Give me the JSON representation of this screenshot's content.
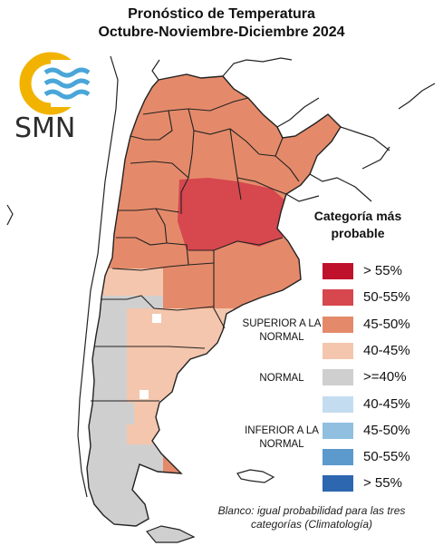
{
  "title_line1": "Pronóstico de Temperatura",
  "title_line2": "Octubre-Noviembre-Diciembre 2024",
  "logo_text": "SMN",
  "legend": {
    "title": "Categoría más probable",
    "superior_label": "SUPERIOR A LA NORMAL",
    "normal_label": "NORMAL",
    "inferior_label": "INFERIOR A LA NORMAL",
    "items": [
      {
        "label": "> 55%",
        "color": "#c0112c",
        "category": "superior"
      },
      {
        "label": "50-55%",
        "color": "#d6474e",
        "category": "superior"
      },
      {
        "label": "45-50%",
        "color": "#e48a6a",
        "category": "superior"
      },
      {
        "label": "40-45%",
        "color": "#f4c6ad",
        "category": "superior"
      },
      {
        "label": ">=40%",
        "color": "#cfcfcf",
        "category": "normal"
      },
      {
        "label": "40-45%",
        "color": "#c4dcf0",
        "category": "inferior"
      },
      {
        "label": "45-50%",
        "color": "#90bfe0",
        "category": "inferior"
      },
      {
        "label": "50-55%",
        "color": "#5c99cc",
        "category": "inferior"
      },
      {
        "label": "> 55%",
        "color": "#2c67b0",
        "category": "inferior"
      }
    ]
  },
  "footnote": "Blanco: igual probabilidad para las tres categorías (Climatología)"
}
